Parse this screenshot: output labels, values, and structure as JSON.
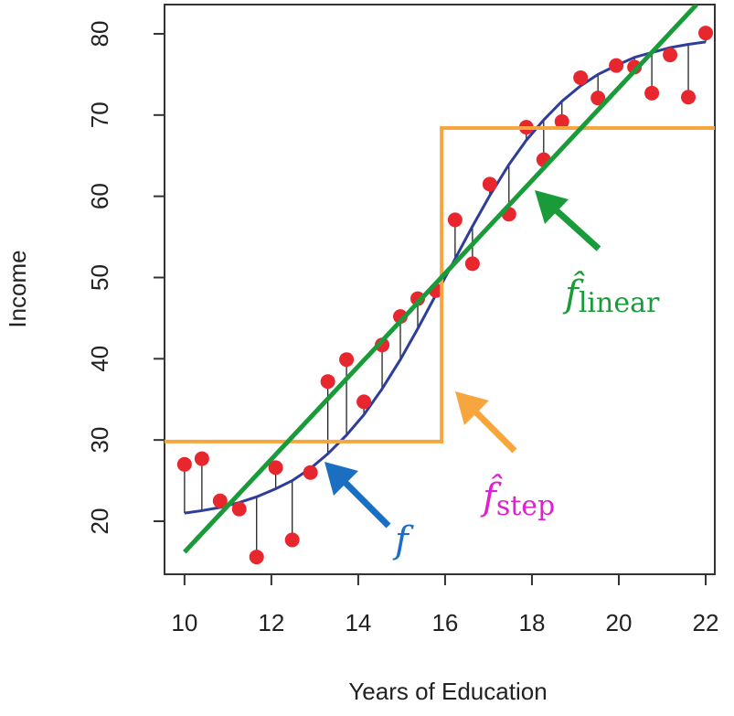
{
  "chart_data": {
    "type": "scatter",
    "xlabel": "Years of Education",
    "ylabel": "Income",
    "xlim": [
      9.54,
      22.21
    ],
    "ylim": [
      13.47,
      83.6
    ],
    "xticks": [
      10,
      12,
      14,
      16,
      18,
      20,
      22
    ],
    "yticks": [
      20,
      30,
      40,
      50,
      60,
      70,
      80
    ],
    "x": [
      10,
      10.4,
      10.82,
      11.26,
      11.66,
      12.1,
      12.48,
      12.9,
      13.3,
      13.73,
      14.13,
      14.55,
      14.97,
      15.37,
      15.79,
      16.23,
      16.63,
      17.03,
      17.47,
      17.87,
      18.27,
      18.69,
      19.12,
      19.52,
      19.94,
      20.36,
      20.76,
      21.18,
      21.6,
      22
    ],
    "points": {
      "color": "#e8262e",
      "values": [
        27.0,
        27.7,
        22.5,
        21.5,
        15.6,
        26.6,
        17.7,
        26.0,
        37.2,
        39.9,
        34.7,
        41.7,
        45.2,
        47.4,
        48.4,
        57.1,
        51.7,
        61.5,
        57.8,
        68.5,
        64.5,
        69.2,
        74.6,
        72.1,
        76.1,
        75.9,
        72.7,
        77.4,
        72.2,
        80.1
      ]
    },
    "true_f": {
      "color": "#2f3d9a",
      "values": [
        21.0,
        21.3,
        21.7,
        22.3,
        23.0,
        24.0,
        25.0,
        26.5,
        28.3,
        30.6,
        33.1,
        36.3,
        39.9,
        43.7,
        47.9,
        52.3,
        56.3,
        60.1,
        63.9,
        66.9,
        69.4,
        71.7,
        73.6,
        75.0,
        76.1,
        77.1,
        77.7,
        78.3,
        78.7,
        79.0
      ]
    },
    "linear_fit": {
      "color": "#1a9b3a",
      "x": [
        10,
        21.79
      ],
      "values": [
        16.2,
        83.6
      ]
    },
    "step_fit": {
      "color": "#f7a53e",
      "x": [
        9.54,
        15.92,
        15.92,
        22.21
      ],
      "values": [
        29.8,
        29.8,
        68.4,
        68.4
      ]
    },
    "annotations": [
      {
        "text": "f",
        "color": "#1a6fc0"
      },
      {
        "text": "f̂",
        "subscript": "linear",
        "color": "#1a9b3a"
      },
      {
        "text": "f̂",
        "subscript": "step",
        "color": "#e020d0"
      }
    ]
  }
}
